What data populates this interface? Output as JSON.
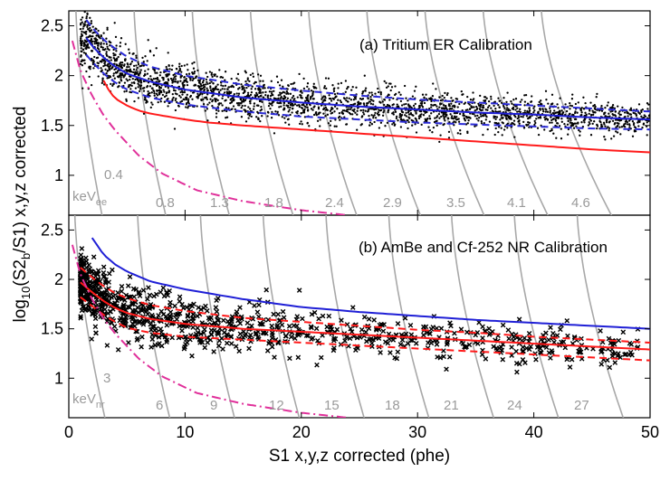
{
  "figure": {
    "xlabel": "S1 x,y,z corrected (phe)",
    "ylabel_pre": "log",
    "ylabel_sub": "10",
    "ylabel_mid": "(S2",
    "ylabel_sub2": "b",
    "ylabel_post": "/S1) x,y,z corrected"
  },
  "colors": {
    "band_median": "#1f1fd6",
    "band_edge": "#2a2ad6",
    "nr_median": "#ff1a1a",
    "threshold": "#e0309a",
    "contour": "#a8a8a8",
    "points": "#000000"
  },
  "chart_data": [
    {
      "type": "scatter",
      "title": "(a) Tritium ER Calibration",
      "xlim": [
        0,
        50
      ],
      "ylim": [
        0.6,
        2.65
      ],
      "xticks": [
        "0",
        "10",
        "20",
        "30",
        "40",
        "50"
      ],
      "yticks": [
        "1",
        "1.5",
        "2",
        "2.5"
      ],
      "unit_label": "keV",
      "unit_sub": "ee",
      "energy_labels": [
        "0.4",
        "0.8",
        "1.3",
        "1.8",
        "2.4",
        "2.9",
        "3.5",
        "4.1",
        "4.6"
      ],
      "band_median": {
        "x": [
          1.5,
          2,
          3,
          4,
          5,
          7,
          10,
          15,
          20,
          25,
          30,
          35,
          40,
          45,
          50
        ],
        "y": [
          2.38,
          2.3,
          2.18,
          2.09,
          2.02,
          1.94,
          1.86,
          1.78,
          1.73,
          1.69,
          1.66,
          1.63,
          1.61,
          1.58,
          1.56
        ]
      },
      "band_upper": {
        "x": [
          1.5,
          2,
          3,
          4,
          5,
          7,
          10,
          15,
          20,
          25,
          30,
          35,
          40,
          45,
          50
        ],
        "y": [
          2.56,
          2.48,
          2.36,
          2.27,
          2.19,
          2.09,
          2.0,
          1.91,
          1.85,
          1.8,
          1.76,
          1.73,
          1.7,
          1.67,
          1.64
        ]
      },
      "band_lower": {
        "x": [
          1.5,
          2,
          3,
          4,
          5,
          7,
          10,
          15,
          20,
          25,
          30,
          35,
          40,
          45,
          50
        ],
        "y": [
          2.21,
          2.14,
          2.02,
          1.93,
          1.86,
          1.78,
          1.71,
          1.64,
          1.59,
          1.56,
          1.53,
          1.51,
          1.49,
          1.47,
          1.46
        ]
      },
      "nr_median": {
        "x": [
          3,
          3.5,
          4,
          5,
          6,
          7,
          8,
          10,
          12,
          15,
          20,
          25,
          30,
          35,
          40,
          45,
          50
        ],
        "y": [
          1.95,
          1.84,
          1.77,
          1.7,
          1.65,
          1.62,
          1.6,
          1.56,
          1.53,
          1.5,
          1.46,
          1.42,
          1.38,
          1.34,
          1.3,
          1.26,
          1.23
        ]
      },
      "threshold": {
        "x": [
          0.3,
          1,
          2,
          3,
          4,
          6,
          8,
          11,
          15,
          20,
          24
        ],
        "y": [
          2.35,
          2.05,
          1.8,
          1.6,
          1.45,
          1.2,
          1.02,
          0.85,
          0.74,
          0.65,
          0.6
        ]
      },
      "point_count": 2600
    },
    {
      "type": "scatter",
      "title": "(b) AmBe and Cf-252 NR Calibration",
      "xlim": [
        0,
        50
      ],
      "ylim": [
        0.6,
        2.65
      ],
      "xticks": [
        "0",
        "10",
        "20",
        "30",
        "40",
        "50"
      ],
      "yticks": [
        "1",
        "1.5",
        "2",
        "2.5"
      ],
      "unit_label": "keV",
      "unit_sub": "nr",
      "energy_labels": [
        "3",
        "6",
        "9",
        "12",
        "15",
        "18",
        "21",
        "24",
        "27"
      ],
      "upper_bound": {
        "x": [
          2,
          3,
          4,
          5,
          7,
          10,
          15,
          20,
          25,
          30,
          35,
          40,
          45,
          50
        ],
        "y": [
          2.42,
          2.25,
          2.15,
          2.08,
          1.98,
          1.9,
          1.8,
          1.72,
          1.67,
          1.63,
          1.59,
          1.56,
          1.53,
          1.5
        ]
      },
      "nr_median": {
        "x": [
          1,
          2,
          3,
          4,
          5,
          7,
          10,
          15,
          20,
          25,
          30,
          35,
          40,
          45,
          50
        ],
        "y": [
          1.97,
          1.87,
          1.78,
          1.71,
          1.66,
          1.6,
          1.55,
          1.5,
          1.47,
          1.44,
          1.41,
          1.38,
          1.35,
          1.32,
          1.29
        ]
      },
      "nr_upper": {
        "x": [
          1,
          2,
          3,
          4,
          5,
          7,
          10,
          15,
          20,
          25,
          30,
          35,
          40,
          45,
          50
        ],
        "y": [
          2.12,
          2.02,
          1.93,
          1.86,
          1.81,
          1.74,
          1.68,
          1.61,
          1.57,
          1.53,
          1.49,
          1.46,
          1.42,
          1.39,
          1.36
        ]
      },
      "nr_lower": {
        "x": [
          1,
          2,
          3,
          4,
          5,
          7,
          10,
          15,
          20,
          25,
          30,
          35,
          40,
          45,
          50
        ],
        "y": [
          1.82,
          1.73,
          1.64,
          1.57,
          1.51,
          1.46,
          1.42,
          1.39,
          1.36,
          1.33,
          1.3,
          1.27,
          1.24,
          1.21,
          1.18
        ]
      },
      "threshold": {
        "x": [
          0.3,
          1,
          2,
          3,
          4,
          6,
          8,
          11,
          15,
          20,
          24
        ],
        "y": [
          2.35,
          2.05,
          1.8,
          1.6,
          1.45,
          1.2,
          1.02,
          0.85,
          0.74,
          0.65,
          0.6
        ]
      },
      "point_count": 1000
    }
  ]
}
